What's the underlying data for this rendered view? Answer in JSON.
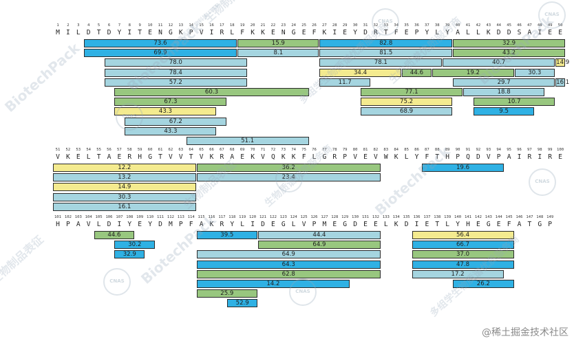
{
  "colors": {
    "blue": "#2fb1e4",
    "green": "#98c77f",
    "lightblue": "#a5d5e0",
    "yellow": "#f4eb8f"
  },
  "sequence_blocks": [
    {
      "start": 1,
      "residues": "MILDTDYITENGKPVIRLFKKENGEFKIEYDRTFEPYLYALLKDDSAIEE",
      "peptides": [
        {
          "start": 4,
          "end": 18,
          "value": "73.6",
          "color": "blue"
        },
        {
          "start": 19,
          "end": 26,
          "value": "15.9",
          "color": "green"
        },
        {
          "start": 27,
          "end": 39,
          "value": "82.8",
          "color": "blue"
        },
        {
          "start": 40,
          "end": 50,
          "value": "32.9",
          "color": "green"
        },
        {
          "start": 4,
          "end": 18,
          "value": "69.9",
          "color": "blue"
        },
        {
          "start": 19,
          "end": 26,
          "value": "8.1",
          "color": "lightblue"
        },
        {
          "start": 27,
          "end": 39,
          "value": "81.5",
          "color": "lightblue"
        },
        {
          "start": 40,
          "end": 50,
          "value": "43.2",
          "color": "green"
        },
        {
          "start": 6,
          "end": 19,
          "value": "78.0",
          "color": "lightblue"
        },
        {
          "start": 27,
          "end": 38,
          "value": "78.1",
          "color": "lightblue"
        },
        {
          "start": 39,
          "end": 49,
          "value": "40.7",
          "color": "lightblue"
        },
        {
          "start": 50,
          "end": 50,
          "value": "14.9",
          "color": "yellow"
        },
        {
          "start": 6,
          "end": 19,
          "value": "78.4",
          "color": "lightblue"
        },
        {
          "start": 27,
          "end": 34,
          "value": "34.4",
          "color": "yellow"
        },
        {
          "start": 35,
          "end": 37,
          "value": "44.6",
          "color": "green"
        },
        {
          "start": 38,
          "end": 45,
          "value": "19.2",
          "color": "green"
        },
        {
          "start": 46,
          "end": 49,
          "value": "30.3",
          "color": "lightblue"
        },
        {
          "start": 6,
          "end": 19,
          "value": "57.2",
          "color": "lightblue"
        },
        {
          "start": 27,
          "end": 31,
          "value": "11.7",
          "color": "lightblue"
        },
        {
          "start": 40,
          "end": 49,
          "value": "29.7",
          "color": "lightblue"
        },
        {
          "start": 50,
          "end": 50,
          "value": "16.1",
          "color": "lightblue"
        },
        {
          "start": 7,
          "end": 25,
          "value": "60.3",
          "color": "green"
        },
        {
          "start": 31,
          "end": 40,
          "value": "77.1",
          "color": "green"
        },
        {
          "start": 41,
          "end": 48,
          "value": "18.8",
          "color": "lightblue"
        },
        {
          "start": 7,
          "end": 17,
          "value": "67.3",
          "color": "green"
        },
        {
          "start": 31,
          "end": 39,
          "value": "75.2",
          "color": "yellow"
        },
        {
          "start": 42,
          "end": 49,
          "value": "10.7",
          "color": "green"
        },
        {
          "start": 7,
          "end": 16,
          "value": "43.3",
          "color": "yellow"
        },
        {
          "start": 31,
          "end": 39,
          "value": "68.9",
          "color": "lightblue"
        },
        {
          "start": 42,
          "end": 47,
          "value": "9.5",
          "color": "blue"
        },
        {
          "start": 8,
          "end": 17,
          "value": "67.2",
          "color": "lightblue"
        },
        {
          "start": 8,
          "end": 16,
          "value": "43.3",
          "color": "lightblue"
        },
        {
          "start": 14,
          "end": 25,
          "value": "51.1",
          "color": "lightblue"
        }
      ],
      "rows": [
        0,
        0,
        0,
        0,
        1,
        1,
        1,
        1,
        2,
        2,
        2,
        2,
        3,
        3,
        3,
        3,
        3,
        4,
        4,
        4,
        4,
        5,
        5,
        5,
        6,
        6,
        6,
        7,
        7,
        7,
        8,
        9,
        10
      ]
    },
    {
      "start": 51,
      "residues": "VKELTAERHGTVVTVKRAEKVQKKFLGRPVEVWKLYFTHPQDVPAIRIRE",
      "peptides": [
        {
          "start": 51,
          "end": 64,
          "value": "12.2",
          "color": "yellow"
        },
        {
          "start": 65,
          "end": 82,
          "value": "36.2",
          "color": "green"
        },
        {
          "start": 87,
          "end": 94,
          "value": "19.6",
          "color": "blue"
        },
        {
          "start": 51,
          "end": 64,
          "value": "13.2",
          "color": "lightblue"
        },
        {
          "start": 65,
          "end": 82,
          "value": "23.4",
          "color": "lightblue"
        },
        {
          "start": 51,
          "end": 64,
          "value": "14.9",
          "color": "yellow"
        },
        {
          "start": 51,
          "end": 64,
          "value": "30.3",
          "color": "lightblue"
        },
        {
          "start": 51,
          "end": 64,
          "value": "16.1",
          "color": "lightblue"
        }
      ],
      "rows": [
        0,
        0,
        0,
        1,
        1,
        2,
        3,
        4
      ]
    },
    {
      "start": 101,
      "residues": "HPAVLDIYEYDMPFAKRYLIDEGLVPMEGDEELKDIETLYHEGEFATGP",
      "peptides": [
        {
          "start": 105,
          "end": 108,
          "value": "44.6",
          "color": "green"
        },
        {
          "start": 115,
          "end": 120,
          "value": "39.5",
          "color": "blue"
        },
        {
          "start": 121,
          "end": 132,
          "value": "44.4",
          "color": "lightblue"
        },
        {
          "start": 136,
          "end": 145,
          "value": "56.4",
          "color": "yellow"
        },
        {
          "start": 107,
          "end": 110,
          "value": "30.2",
          "color": "blue"
        },
        {
          "start": 121,
          "end": 132,
          "value": "64.9",
          "color": "green"
        },
        {
          "start": 136,
          "end": 145,
          "value": "66.7",
          "color": "blue"
        },
        {
          "start": 107,
          "end": 109,
          "value": "32.9",
          "color": "blue"
        },
        {
          "start": 115,
          "end": 132,
          "value": "64.9",
          "color": "lightblue"
        },
        {
          "start": 136,
          "end": 145,
          "value": "37.0",
          "color": "green"
        },
        {
          "start": 115,
          "end": 132,
          "value": "64.3",
          "color": "blue"
        },
        {
          "start": 136,
          "end": 145,
          "value": "47.8",
          "color": "blue"
        },
        {
          "start": 115,
          "end": 132,
          "value": "62.8",
          "color": "green"
        },
        {
          "start": 136,
          "end": 144,
          "value": "17.2",
          "color": "lightblue"
        },
        {
          "start": 115,
          "end": 129,
          "value": "14.2",
          "color": "blue"
        },
        {
          "start": 140,
          "end": 145,
          "value": "26.2",
          "color": "blue"
        },
        {
          "start": 115,
          "end": 120,
          "value": "25.9",
          "color": "green"
        },
        {
          "start": 118,
          "end": 120,
          "value": "52.9",
          "color": "blue"
        }
      ],
      "rows": [
        0,
        0,
        0,
        0,
        1,
        1,
        1,
        2,
        2,
        2,
        3,
        3,
        4,
        4,
        5,
        5,
        6,
        7
      ]
    }
  ],
  "watermark": {
    "brand": "BiotechPack",
    "brand_sub": "百泰派克生物科技 ITTP",
    "lines": [
      "生物制品表征",
      "多组学生物质谱优质服务商",
      "生物质谱优质服务商"
    ],
    "logo": "CNAS"
  },
  "credit": "@稀土掘金技术社区"
}
